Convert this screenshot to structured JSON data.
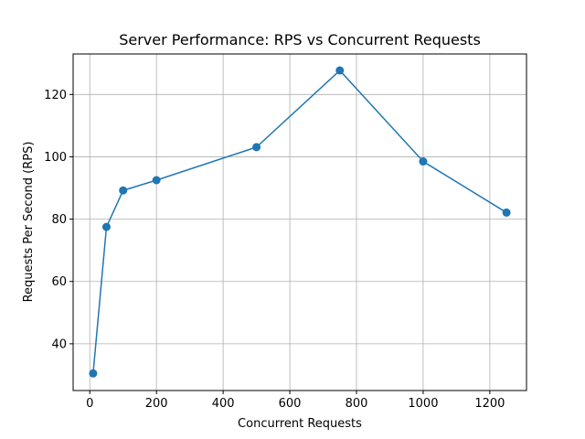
{
  "chart_data": {
    "type": "line",
    "title": "Server Performance: RPS vs Concurrent Requests",
    "xlabel": "Concurrent Requests",
    "ylabel": "Requests Per Second (RPS)",
    "xlim": [
      -50,
      1310
    ],
    "ylim": [
      25,
      133
    ],
    "xticks": [
      0,
      200,
      400,
      600,
      800,
      1000,
      1200
    ],
    "yticks": [
      40,
      60,
      80,
      100,
      120
    ],
    "grid": true,
    "series": [
      {
        "color": "#1f77b4",
        "marker": "circle",
        "points": [
          {
            "x": 10,
            "y": 30.5
          },
          {
            "x": 50,
            "y": 77.5
          },
          {
            "x": 100,
            "y": 89.2
          },
          {
            "x": 200,
            "y": 92.5
          },
          {
            "x": 500,
            "y": 103.1
          },
          {
            "x": 750,
            "y": 127.7
          },
          {
            "x": 1000,
            "y": 98.5
          },
          {
            "x": 1250,
            "y": 82.1
          }
        ]
      }
    ]
  }
}
